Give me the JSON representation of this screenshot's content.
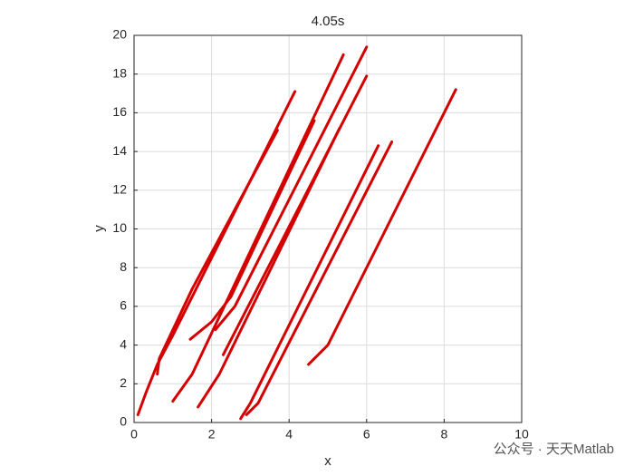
{
  "chart_data": {
    "type": "line",
    "title": "4.05s",
    "x_label": "x",
    "y_label": "y",
    "color": "#d40000",
    "series": [
      {
        "x": [
          0.1,
          0.3,
          0.6,
          1.0,
          4.15
        ],
        "values": [
          0.4,
          1.5,
          3.0,
          4.5,
          17.1
        ]
      },
      {
        "x": [
          0.6,
          0.65,
          1.5,
          3.7
        ],
        "values": [
          2.5,
          3.3,
          6.9,
          15.1
        ]
      },
      {
        "x": [
          1.45,
          2.0,
          2.5,
          4.65
        ],
        "values": [
          4.3,
          5.2,
          6.5,
          15.6
        ]
      },
      {
        "x": [
          1.0,
          1.5,
          5.4
        ],
        "values": [
          1.1,
          2.5,
          19.0
        ]
      },
      {
        "x": [
          2.1,
          2.6,
          6.0
        ],
        "values": [
          4.8,
          6.0,
          19.4
        ]
      },
      {
        "x": [
          1.65,
          2.2,
          5.3
        ],
        "values": [
          0.8,
          2.5,
          15.2
        ]
      },
      {
        "x": [
          2.3,
          6.0
        ],
        "values": [
          3.5,
          17.9
        ]
      },
      {
        "x": [
          2.75,
          3.0,
          6.3
        ],
        "values": [
          0.2,
          1.0,
          14.3
        ]
      },
      {
        "x": [
          2.9,
          3.2,
          6.65
        ],
        "values": [
          0.4,
          1.0,
          14.5
        ]
      },
      {
        "x": [
          4.5,
          5.0,
          8.3
        ],
        "values": [
          3.0,
          4.0,
          17.2
        ]
      }
    ],
    "xlim": [
      0,
      10
    ],
    "xticks": [
      0,
      2,
      4,
      6,
      8,
      10
    ],
    "ylim": [
      0,
      20
    ],
    "yticks": [
      0,
      2,
      4,
      6,
      8,
      10,
      12,
      14,
      16,
      18,
      20
    ],
    "grid": true
  },
  "watermark": "公众号 · 天天Matlab"
}
